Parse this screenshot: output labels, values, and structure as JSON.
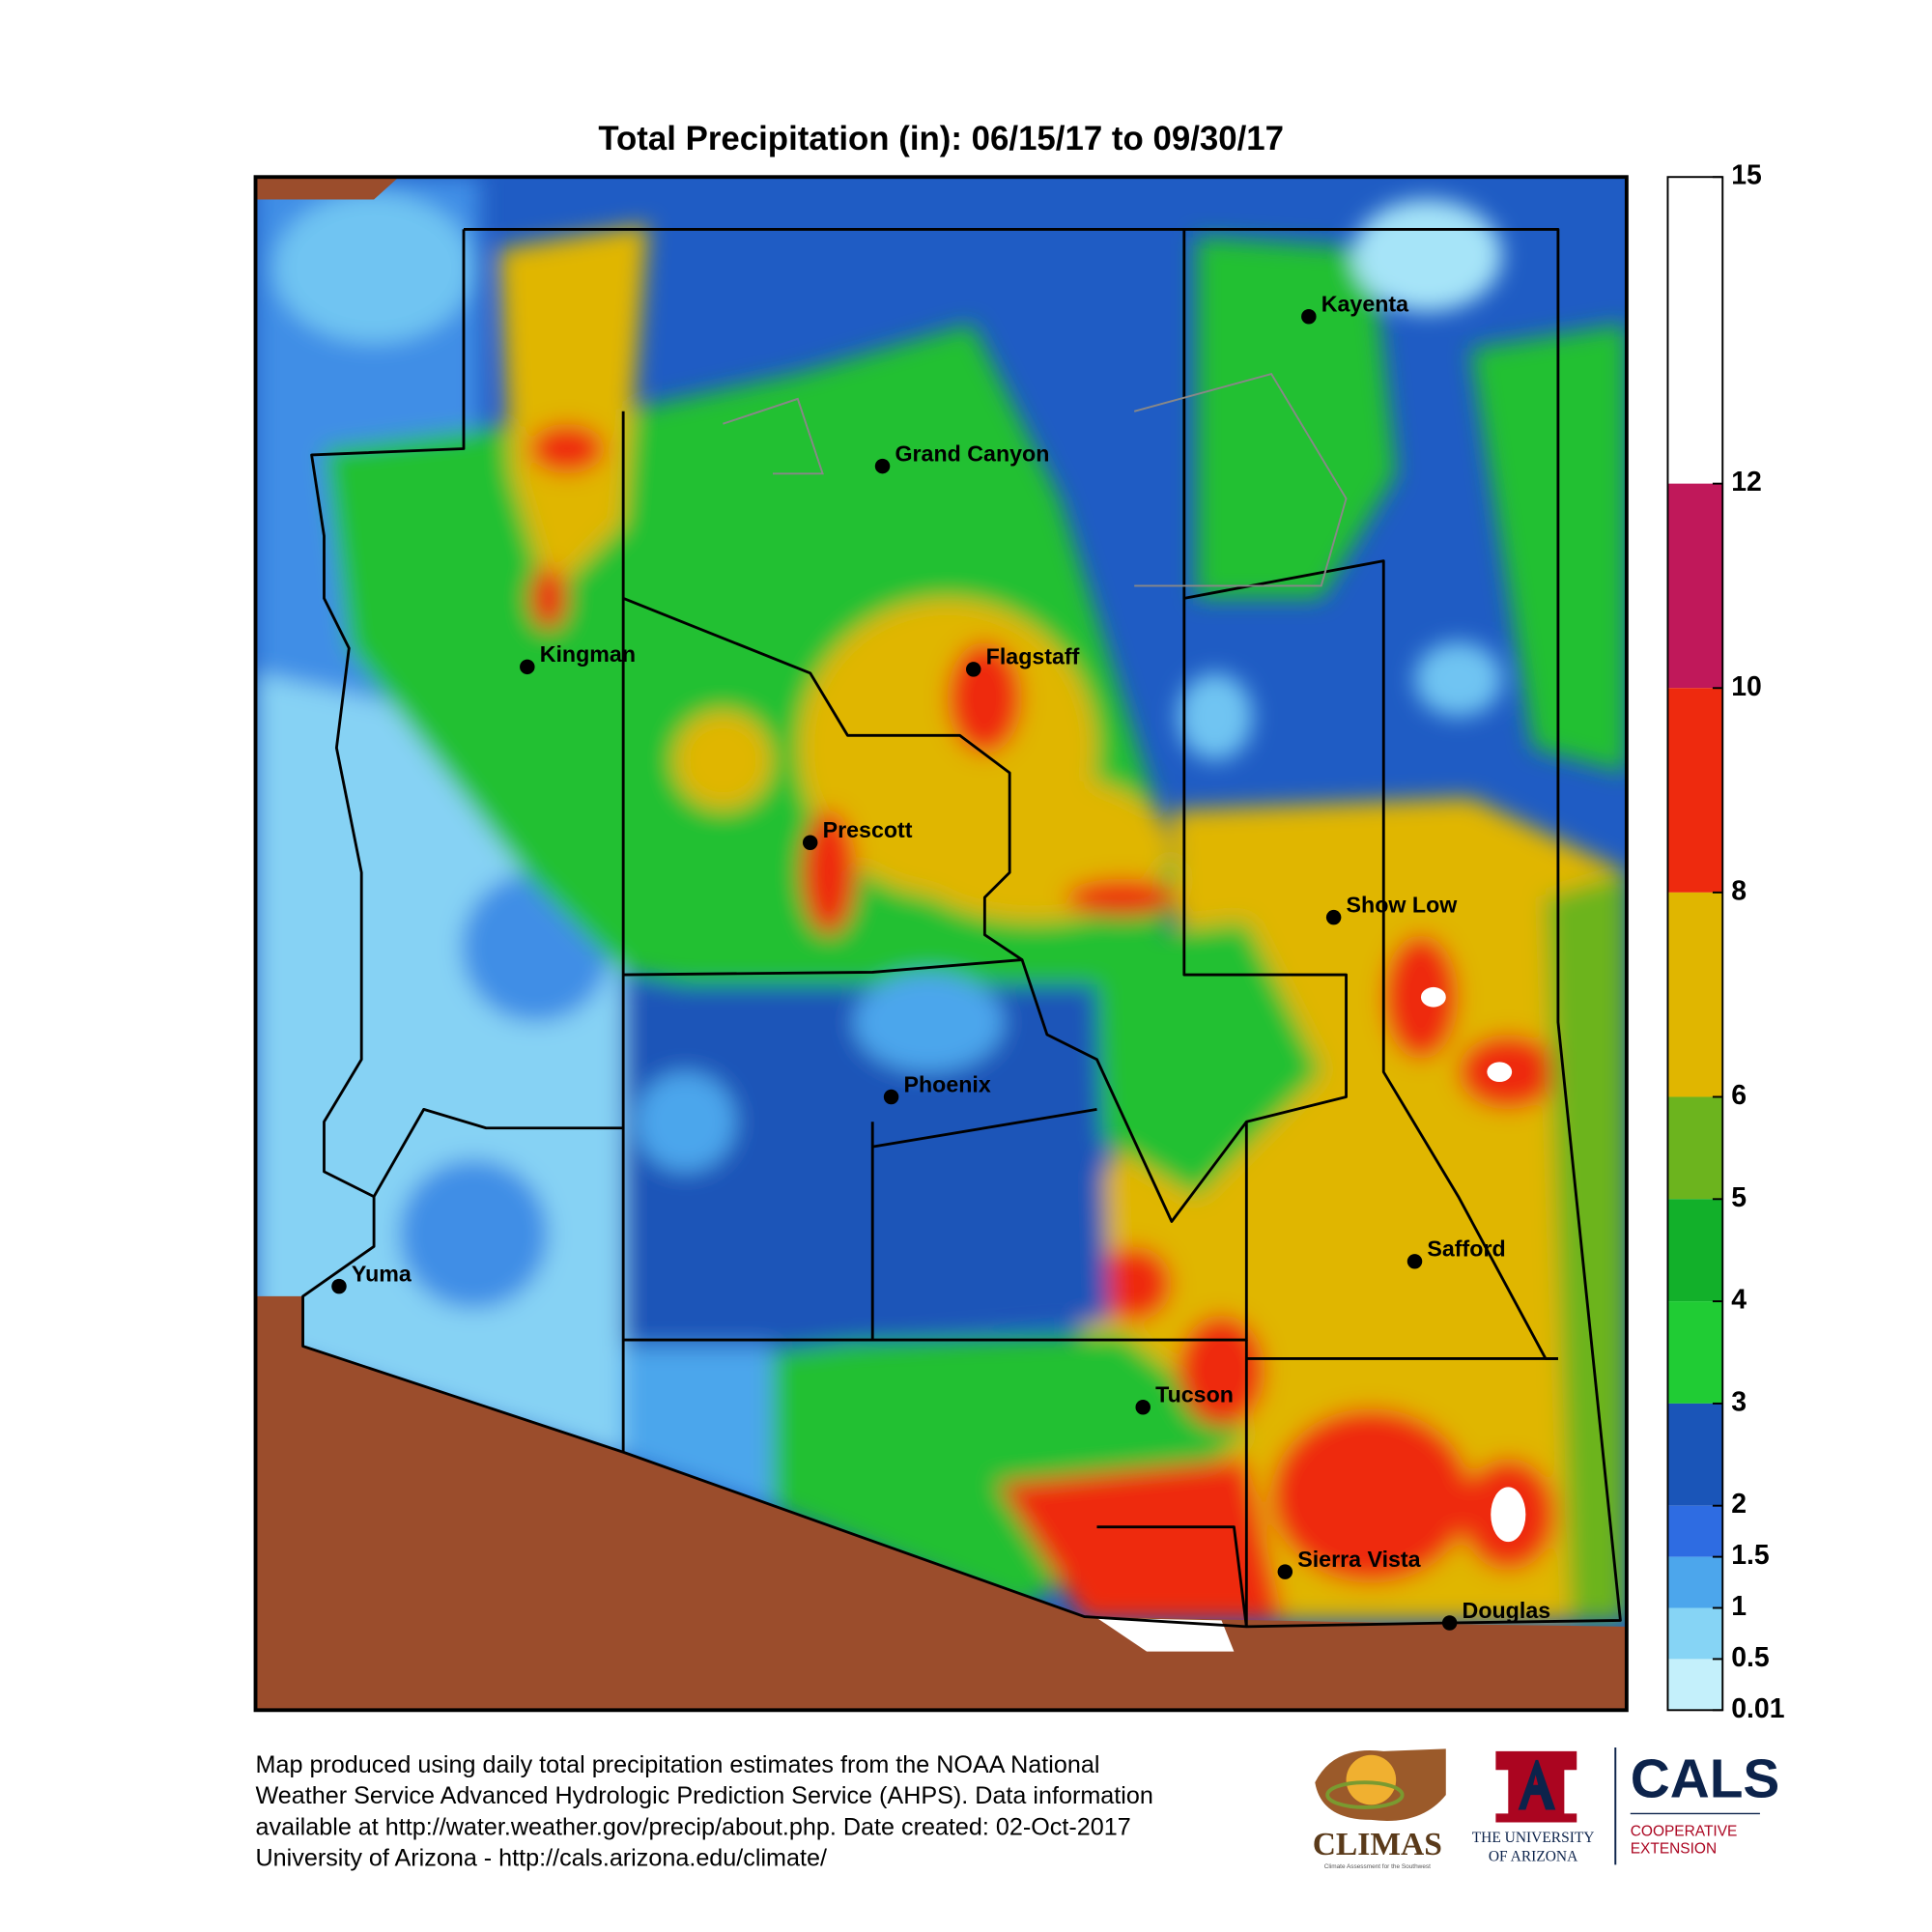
{
  "title": "Total Precipitation (in): 06/15/17 to 09/30/17",
  "cities": [
    {
      "name": "Kayenta"
    },
    {
      "name": "Grand Canyon"
    },
    {
      "name": "Kingman"
    },
    {
      "name": "Flagstaff"
    },
    {
      "name": "Prescott"
    },
    {
      "name": "Show Low"
    },
    {
      "name": "Phoenix"
    },
    {
      "name": "Safford"
    },
    {
      "name": "Yuma"
    },
    {
      "name": "Tucson"
    },
    {
      "name": "Sierra Vista"
    },
    {
      "name": "Douglas"
    }
  ],
  "legend": {
    "ticks": [
      15,
      12,
      10,
      8,
      6,
      5,
      4,
      3,
      2,
      1.5,
      1,
      0.5,
      0.01
    ],
    "colors": [
      "#ffffff",
      "#c0185a",
      "#ee2a0e",
      "#e0b600",
      "#6cb41e",
      "#12b02a",
      "#20cc34",
      "#1a55b8",
      "#2e6ce2",
      "#4ca6ec",
      "#86d4f5",
      "#c4f0fb"
    ]
  },
  "footer": [
    "Map produced using daily total precipitation estimates from the NOAA National",
    "Weather Service Advanced Hydrologic Prediction Service (AHPS). Data information",
    "available at http://water.weather.gov/precip/about.php. Date created: 02-Oct-2017",
    "University of Arizona - http://cals.arizona.edu/climate/"
  ],
  "logos": {
    "climas": "CLIMAS",
    "climas_sub": "Climate Assessment for the Southwest",
    "ua_line1": "THE UNIVERSITY",
    "ua_line2": "OF ARIZONA",
    "cals": "CALS",
    "cals_line1": "COOPERATIVE",
    "cals_line2": "EXTENSION"
  }
}
